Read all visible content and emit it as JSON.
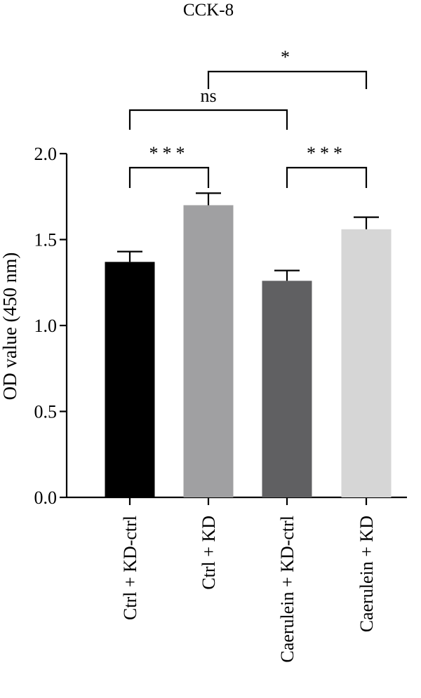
{
  "chart_data": {
    "type": "bar",
    "title": "CCK-8",
    "ylabel": "OD value (450 nm)",
    "xlabel": "",
    "ylim": [
      0,
      2.0
    ],
    "yticks": [
      "0.0",
      "0.5",
      "1.0",
      "1.5",
      "2.0"
    ],
    "categories": [
      "Ctrl + KD-ctrl",
      "Ctrl + KD",
      "Caerulein + KD-ctrl",
      "Caerulein + KD"
    ],
    "values": [
      1.37,
      1.7,
      1.26,
      1.56
    ],
    "errors": [
      0.06,
      0.07,
      0.06,
      0.07
    ],
    "colors": [
      "#000000",
      "#a0a0a2",
      "#606062",
      "#d6d6d6"
    ],
    "significance": [
      {
        "from": 0,
        "to": 1,
        "label": "***",
        "level": 0
      },
      {
        "from": 2,
        "to": 3,
        "label": "***",
        "level": 0
      },
      {
        "from": 0,
        "to": 2,
        "label": "ns",
        "level": 1
      },
      {
        "from": 1,
        "to": 3,
        "label": "*",
        "level": 2
      }
    ]
  }
}
